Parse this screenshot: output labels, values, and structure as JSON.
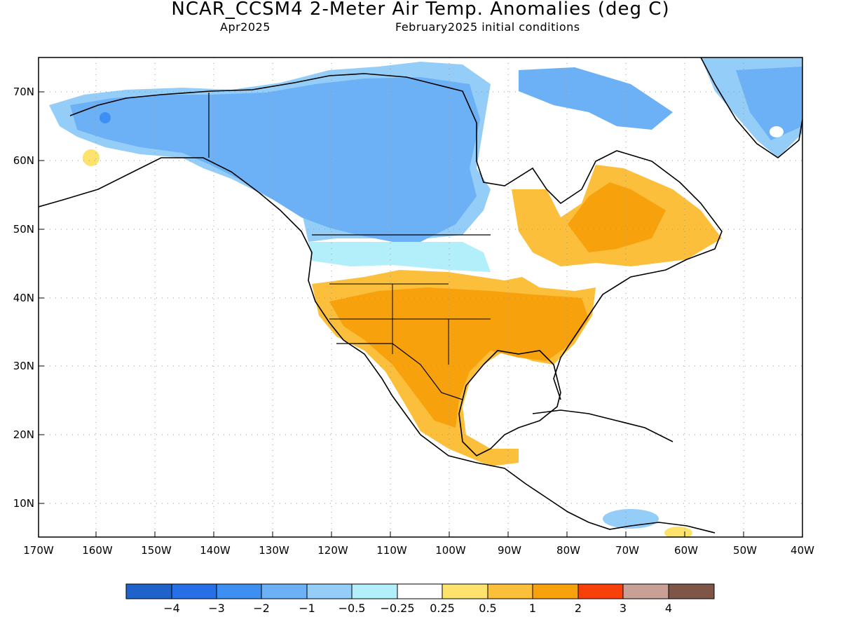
{
  "title": "NCAR_CCSM4 2-Meter Air Temp. Anomalies (deg C)",
  "subtitle_left": "Apr2025",
  "subtitle_right": "February2025 initial conditions",
  "lat_labels": [
    "70N",
    "60N",
    "50N",
    "40N",
    "30N",
    "20N",
    "10N"
  ],
  "lon_labels": [
    "170W",
    "160W",
    "150W",
    "140W",
    "130W",
    "120W",
    "110W",
    "100W",
    "90W",
    "80W",
    "70W",
    "60W",
    "50W",
    "40W"
  ],
  "colorbar": {
    "colors": [
      "#1f62c9",
      "#276fe6",
      "#3d8ff2",
      "#6cb0f5",
      "#94cdf7",
      "#b3eefb",
      "#ffffff",
      "#fde26d",
      "#fbbf3c",
      "#f7a10c",
      "#f8400b",
      "#c8a096",
      "#7f5547"
    ],
    "labels": [
      "−4",
      "−3",
      "−2",
      "−1",
      "−0.5",
      "−0.25",
      "0.25",
      "0.5",
      "1",
      "2",
      "3",
      "4"
    ]
  },
  "colors": {
    "frame": "#000000",
    "grid": "#999999",
    "coast": "#000000"
  }
}
